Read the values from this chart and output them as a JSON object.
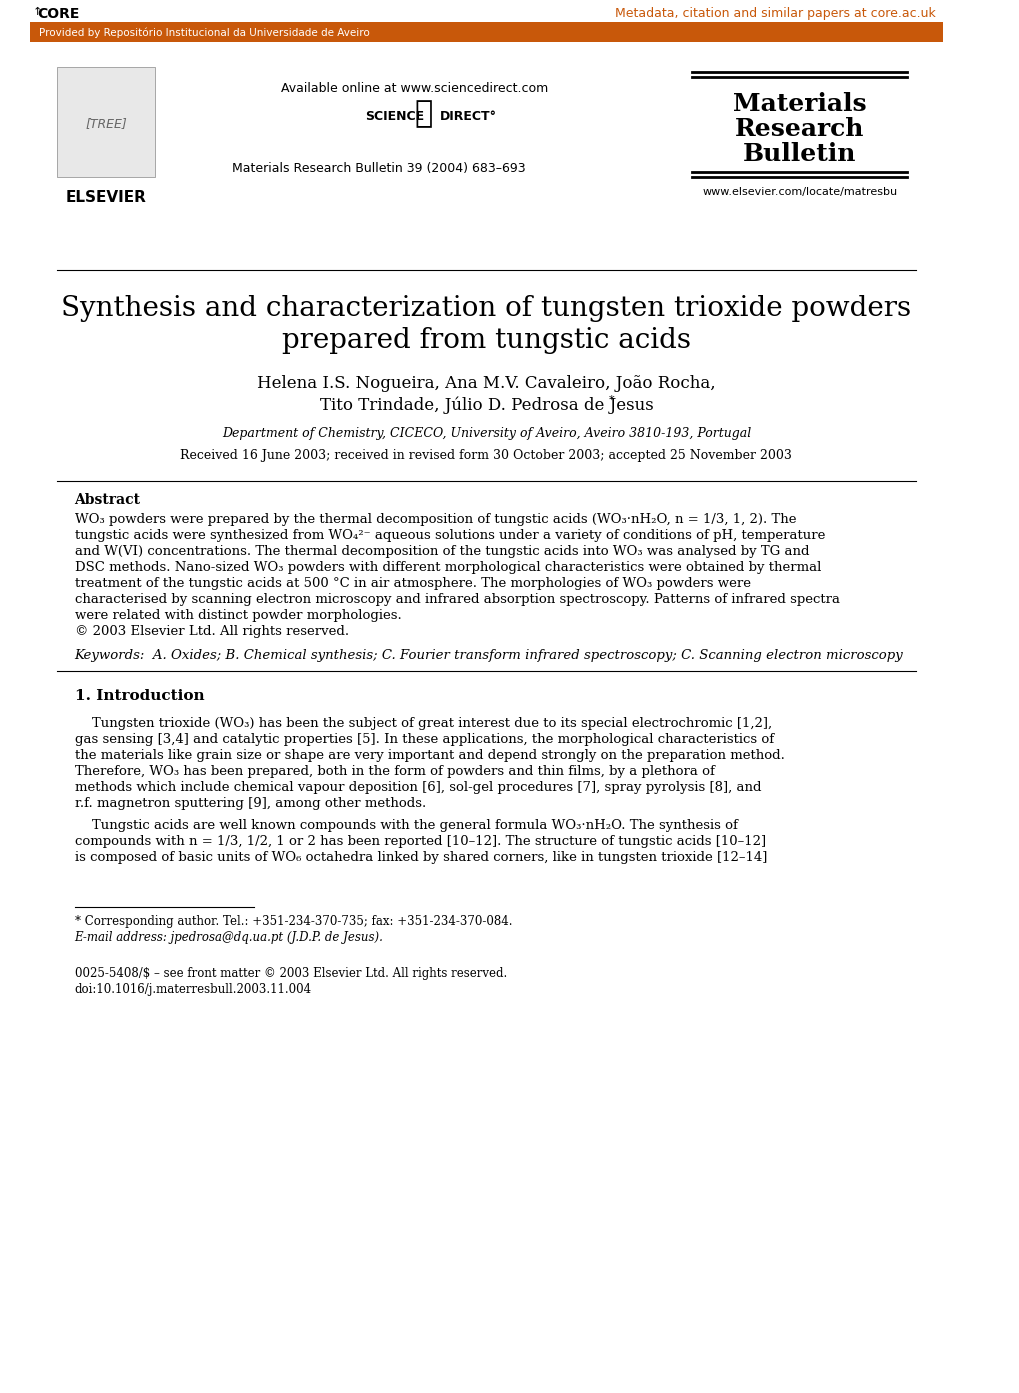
{
  "bg_color": "#ffffff",
  "header_bar_color": "#C8580A",
  "header_bar_text": "Provided by Repositório Institucional da Universidade de Aveiro",
  "header_bar_text_color": "#ffffff",
  "core_text": "CORE",
  "metadata_link": "Metadata, citation and similar papers at core.ac.uk",
  "metadata_link_color": "#C8580A",
  "available_online": "Available online at www.sciencedirect.com",
  "science_direct": "SCIENCE   DIRECT°",
  "journal_ref": "Materials Research Bulletin 39 (2004) 683–693",
  "journal_title_line1": "Materials",
  "journal_title_line2": "Research",
  "journal_title_line3": "Bulletin",
  "journal_url": "www.elsevier.com/locate/matresbu",
  "elsevier_text": "ELSEVIER",
  "paper_title_line1": "Synthesis and characterization of tungsten trioxide powders",
  "paper_title_line2": "prepared from tungstic acids",
  "authors_line1": "Helena I.S. Nogueira, Ana M.V. Cavaleiro, João Rocha,",
  "authors_line2": "Tito Trindade, Júlio D. Pedrosa de Jesus",
  "affiliation": "Department of Chemistry, CICECO, University of Aveiro, Aveiro 3810-193, Portugal",
  "received": "Received 16 June 2003; received in revised form 30 October 2003; accepted 25 November 2003",
  "abstract_title": "Abstract",
  "abstract_body": "WO₃ powders were prepared by the thermal decomposition of tungstic acids (WO₃·nH₂O, n = 1/3, 1, 2). The\ntungstic acids were synthesized from WO₄²⁻ aqueous solutions under a variety of conditions of pH, temperature\nand W(VI) concentrations. The thermal decomposition of the tungstic acids into WO₃ was analysed by TG and\nDSC methods. Nano-sized WO₃ powders with different morphological characteristics were obtained by thermal\ntreatment of the tungstic acids at 500 °C in air atmosphere. The morphologies of WO₃ powders were\ncharacterised by scanning electron microscopy and infrared absorption spectroscopy. Patterns of infrared spectra\nwere related with distinct powder morphologies.\n© 2003 Elsevier Ltd. All rights reserved.",
  "keywords": "Keywords:  A. Oxides; B. Chemical synthesis; C. Fourier transform infrared spectroscopy; C. Scanning electron microscopy",
  "section1_title": "1. Introduction",
  "intro_para1": "Tungsten trioxide (WO₃) has been the subject of great interest due to its special electrochromic [1,2],\ngas sensing [3,4] and catalytic properties [5]. In these applications, the morphological characteristics of\nthe materials like grain size or shape are very important and depend strongly on the preparation method.\nTherefore, WO₃ has been prepared, both in the form of powders and thin films, by a plethora of\nmethods which include chemical vapour deposition [6], sol-gel procedures [7], spray pyrolysis [8], and\nr.f. magnetron sputtering [9], among other methods.",
  "intro_para2": "Tungstic acids are well known compounds with the general formula WO₃·nH₂O. The synthesis of\ncompounds with n = 1/3, 1/2, 1 or 2 has been reported [10–12]. The structure of tungstic acids [10–12]\nis composed of basic units of WO₆ octahedra linked by shared corners, like in tungsten trioxide [12–14]",
  "footnote_line1": "* Corresponding author. Tel.: +351-234-370-735; fax: +351-234-370-084.",
  "footnote_line2": "E-mail address: jpedrosa@dq.ua.pt (J.D.P. de Jesus).",
  "footer_line1": "0025-5408/$ – see front matter © 2003 Elsevier Ltd. All rights reserved.",
  "footer_line2": "doi:10.1016/j.materresbull.2003.11.004"
}
